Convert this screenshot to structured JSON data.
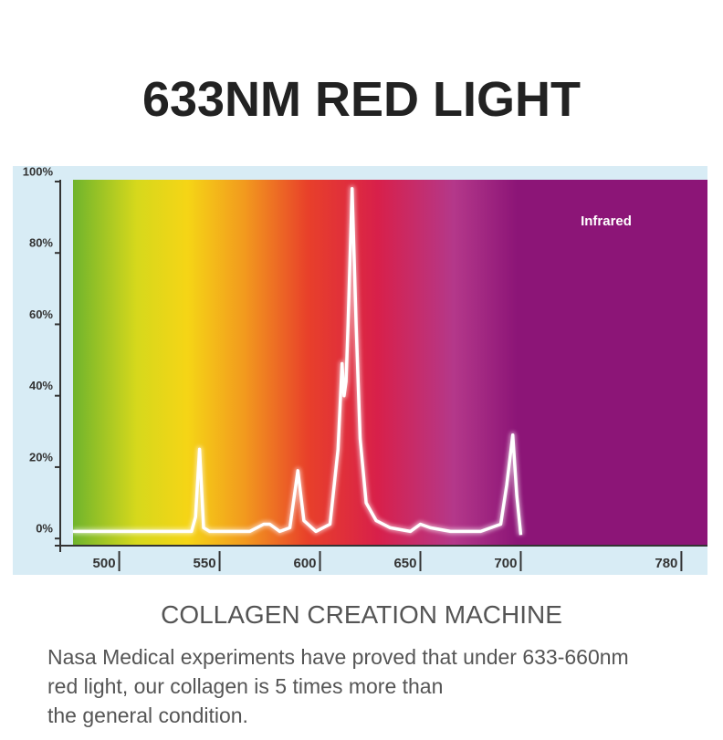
{
  "title": "633NM RED LIGHT",
  "chart_data": {
    "type": "line",
    "color": "#ffffff",
    "annotation": "Infrared",
    "x": [
      477,
      500,
      530,
      536,
      538,
      540,
      542,
      545,
      565,
      572,
      575,
      580,
      585,
      589,
      592,
      598,
      605,
      609,
      611,
      612,
      613,
      614,
      616,
      618,
      620,
      623,
      628,
      635,
      645,
      650,
      655,
      665,
      680,
      690,
      693,
      696,
      698,
      700
    ],
    "values": [
      2,
      2,
      2,
      2,
      6,
      25,
      3,
      2,
      2,
      4,
      4,
      2,
      3,
      19,
      5,
      2,
      4,
      25,
      49,
      40,
      44,
      60,
      98,
      60,
      28,
      10,
      5,
      3,
      2,
      4,
      3,
      2,
      2,
      4,
      15,
      29,
      12,
      1
    ],
    "xlim": [
      477,
      793
    ],
    "xticks": [
      500,
      550,
      600,
      650,
      700,
      780
    ],
    "ylim": [
      -2,
      100.5
    ],
    "yticks": [
      {
        "value": 0,
        "label": "0%"
      },
      {
        "value": 20,
        "label": "20%"
      },
      {
        "value": 40,
        "label": "40%"
      },
      {
        "value": 60,
        "label": "60%"
      },
      {
        "value": 80,
        "label": "80%"
      },
      {
        "value": 100,
        "label": "100%"
      }
    ]
  },
  "subtitle": "COLLAGEN CREATION MACHINE",
  "body_lines": [
    "Nasa Medical experiments have proved that under 633-660nm",
    "red light, our collagen is 5 times more than",
    "the general condition."
  ]
}
